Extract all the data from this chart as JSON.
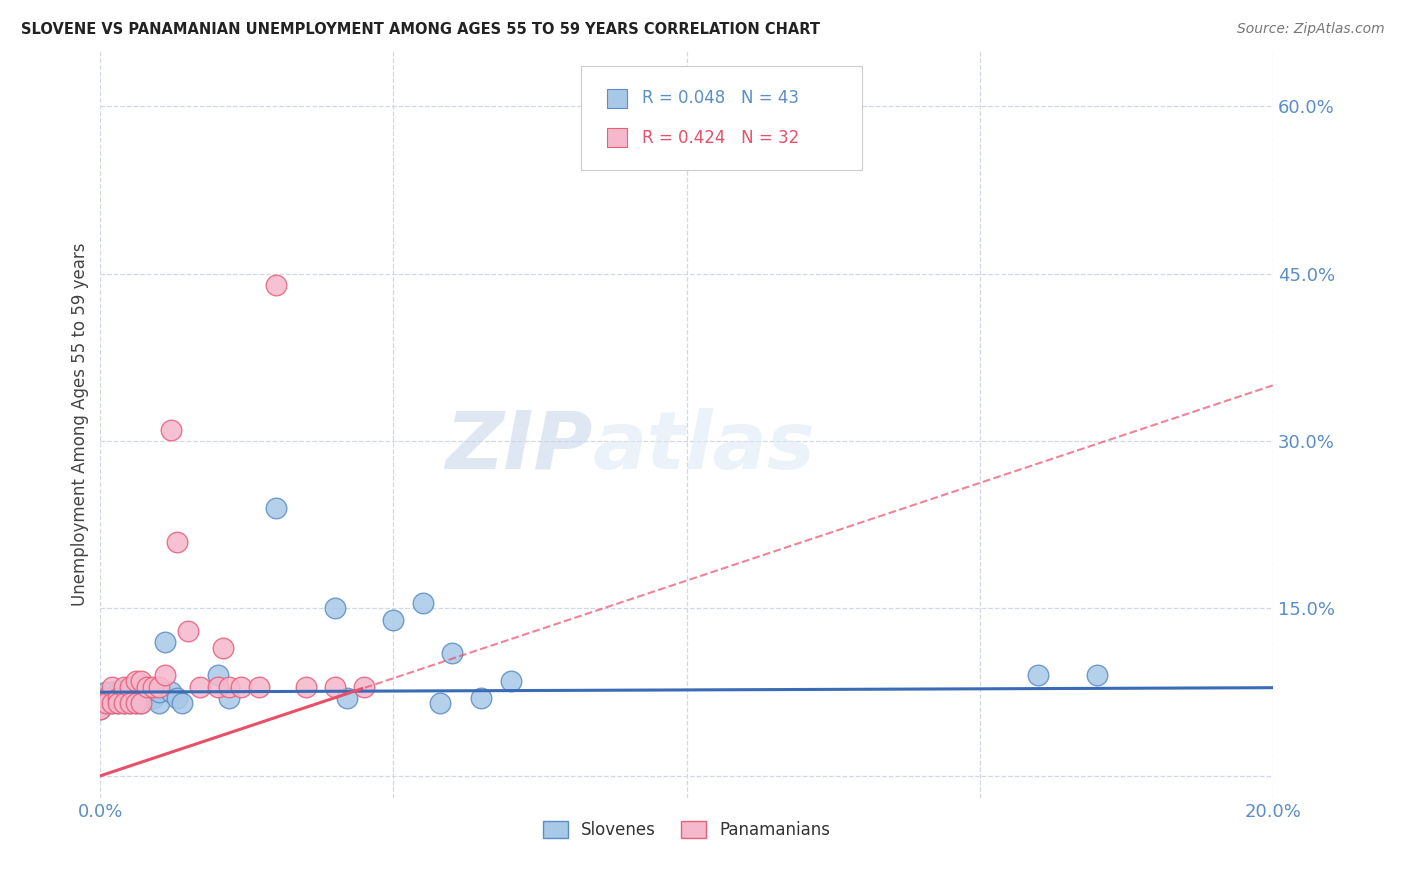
{
  "title": "SLOVENE VS PANAMANIAN UNEMPLOYMENT AMONG AGES 55 TO 59 YEARS CORRELATION CHART",
  "source": "Source: ZipAtlas.com",
  "ylabel": "Unemployment Among Ages 55 to 59 years",
  "xlim": [
    0.0,
    0.2
  ],
  "ylim": [
    -0.02,
    0.65
  ],
  "xticks": [
    0.0,
    0.05,
    0.1,
    0.15,
    0.2
  ],
  "xticklabels": [
    "0.0%",
    "",
    "",
    "",
    "20.0%"
  ],
  "yticks": [
    0.0,
    0.15,
    0.3,
    0.45,
    0.6
  ],
  "yticklabels": [
    "",
    "15.0%",
    "30.0%",
    "45.0%",
    "60.0%"
  ],
  "slovene_x": [
    0.0,
    0.001,
    0.001,
    0.001,
    0.002,
    0.002,
    0.002,
    0.003,
    0.003,
    0.003,
    0.004,
    0.004,
    0.004,
    0.005,
    0.005,
    0.005,
    0.006,
    0.006,
    0.006,
    0.007,
    0.007,
    0.008,
    0.008,
    0.009,
    0.01,
    0.01,
    0.011,
    0.012,
    0.013,
    0.014,
    0.02,
    0.022,
    0.03,
    0.04,
    0.042,
    0.05,
    0.055,
    0.058,
    0.06,
    0.065,
    0.07,
    0.16,
    0.17
  ],
  "slovene_y": [
    0.06,
    0.07,
    0.065,
    0.075,
    0.07,
    0.065,
    0.075,
    0.07,
    0.065,
    0.075,
    0.07,
    0.065,
    0.075,
    0.07,
    0.065,
    0.075,
    0.07,
    0.065,
    0.075,
    0.07,
    0.065,
    0.075,
    0.07,
    0.07,
    0.065,
    0.075,
    0.12,
    0.075,
    0.07,
    0.065,
    0.09,
    0.07,
    0.24,
    0.15,
    0.07,
    0.14,
    0.155,
    0.065,
    0.11,
    0.07,
    0.085,
    0.09,
    0.09
  ],
  "panamanian_x": [
    0.0,
    0.001,
    0.001,
    0.002,
    0.002,
    0.003,
    0.003,
    0.004,
    0.004,
    0.005,
    0.005,
    0.006,
    0.006,
    0.007,
    0.007,
    0.008,
    0.009,
    0.01,
    0.011,
    0.012,
    0.013,
    0.015,
    0.017,
    0.02,
    0.021,
    0.022,
    0.024,
    0.027,
    0.03,
    0.035,
    0.04,
    0.045
  ],
  "panamanian_y": [
    0.06,
    0.07,
    0.065,
    0.08,
    0.065,
    0.07,
    0.065,
    0.08,
    0.065,
    0.08,
    0.065,
    0.085,
    0.065,
    0.085,
    0.065,
    0.08,
    0.08,
    0.08,
    0.09,
    0.31,
    0.21,
    0.13,
    0.08,
    0.08,
    0.115,
    0.08,
    0.08,
    0.08,
    0.44,
    0.08,
    0.08,
    0.08
  ],
  "slovene_color": "#a8c8e8",
  "panamanian_color": "#f5b8cc",
  "slovene_edge_color": "#5b8ec4",
  "panamanian_edge_color": "#e8607a",
  "slovene_line_color": "#3a6bb5",
  "panamanian_line_color": "#e8506a",
  "R_slovene": 0.048,
  "N_slovene": 43,
  "R_panamanian": 0.424,
  "N_panamanian": 32,
  "watermark_zip": "ZIP",
  "watermark_atlas": "atlas",
  "legend_label_slovene": "Slovenes",
  "legend_label_panamanian": "Panamanians",
  "axis_label_color": "#5b8ec4",
  "grid_color": "#d0d8e8",
  "pink_line_solid_end_x": 0.045,
  "pink_line_intercept": 0.0,
  "pink_line_slope": 1.75,
  "blue_line_intercept": 0.075,
  "blue_line_slope": 0.02
}
